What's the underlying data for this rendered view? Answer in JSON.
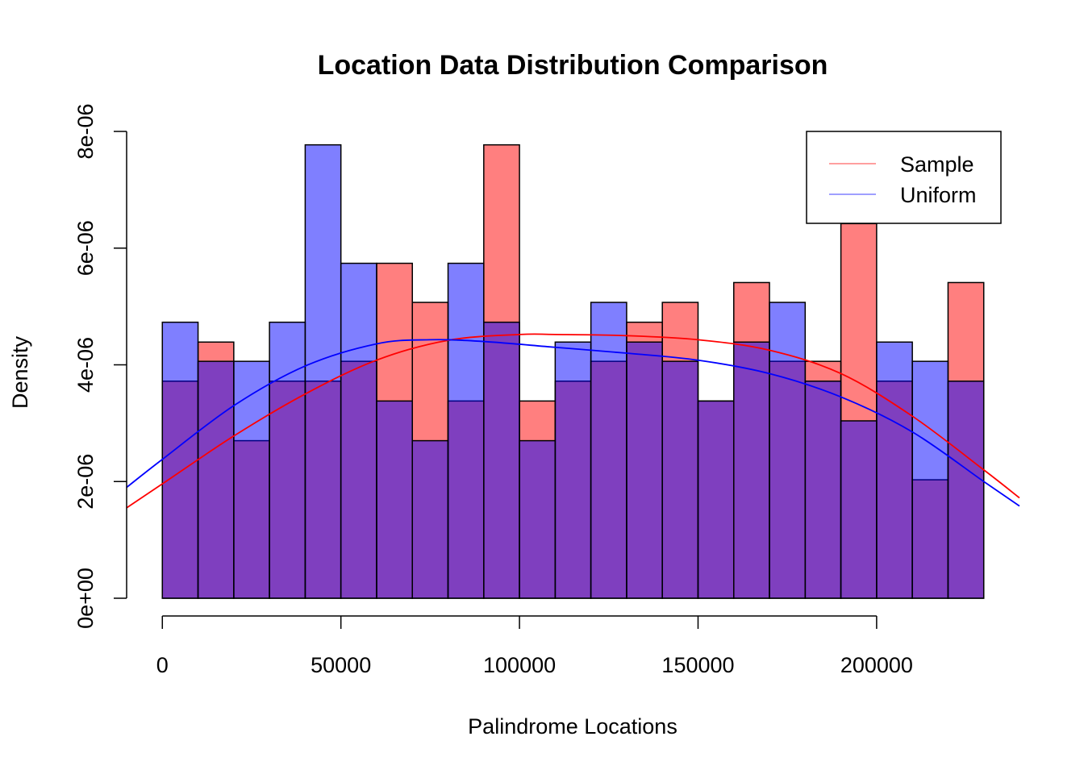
{
  "chart_data": {
    "type": "bar",
    "title": "Location Data Distribution Comparison",
    "xlabel": "Palindrome Locations",
    "ylabel": "Density",
    "xlim": [
      -10000,
      240000
    ],
    "ylim": [
      0,
      8e-06
    ],
    "x_ticks": [
      0,
      50000,
      100000,
      150000,
      200000
    ],
    "x_tick_labels": [
      "0",
      "50000",
      "100000",
      "150000",
      "200000"
    ],
    "y_ticks": [
      0,
      2e-06,
      4e-06,
      6e-06,
      8e-06
    ],
    "y_tick_labels": [
      "0e+00",
      "2e-06",
      "4e-06",
      "6e-06",
      "8e-06"
    ],
    "bin_edges": [
      0,
      10000,
      20000,
      30000,
      40000,
      50000,
      60000,
      70000,
      80000,
      90000,
      100000,
      110000,
      120000,
      130000,
      140000,
      150000,
      160000,
      170000,
      180000,
      190000,
      200000,
      210000,
      220000,
      230000
    ],
    "series": [
      {
        "name": "Sample",
        "color": "#ff0000",
        "fill": "rgba(255,0,0,0.5)",
        "values": [
          3.72e-06,
          4.39e-06,
          2.7e-06,
          3.72e-06,
          3.72e-06,
          4.06e-06,
          5.74e-06,
          5.07e-06,
          3.38e-06,
          7.77e-06,
          3.38e-06,
          3.72e-06,
          4.06e-06,
          4.73e-06,
          5.07e-06,
          3.38e-06,
          5.41e-06,
          4.06e-06,
          4.06e-06,
          6.42e-06,
          3.72e-06,
          2.03e-06,
          5.41e-06
        ],
        "density_curve": {
          "x": [
            -10000,
            0,
            20000,
            40000,
            60000,
            80000,
            100000,
            110000,
            130000,
            150000,
            170000,
            190000,
            210000,
            230000,
            240000
          ],
          "y": [
            1.55e-06,
            1.96e-06,
            2.78e-06,
            3.5e-06,
            4.08e-06,
            4.42e-06,
            4.52e-06,
            4.52e-06,
            4.5e-06,
            4.43e-06,
            4.25e-06,
            3.85e-06,
            3.12e-06,
            2.2e-06,
            1.72e-06
          ]
        }
      },
      {
        "name": "Uniform",
        "color": "#0000ff",
        "fill": "rgba(0,0,255,0.5)",
        "values": [
          4.73e-06,
          4.06e-06,
          4.06e-06,
          4.73e-06,
          7.77e-06,
          5.74e-06,
          3.38e-06,
          2.7e-06,
          5.74e-06,
          4.73e-06,
          2.7e-06,
          4.39e-06,
          5.07e-06,
          4.39e-06,
          4.06e-06,
          3.38e-06,
          4.39e-06,
          5.07e-06,
          3.72e-06,
          3.04e-06,
          4.39e-06,
          4.06e-06,
          3.72e-06
        ],
        "density_curve": {
          "x": [
            -10000,
            0,
            20000,
            40000,
            60000,
            75000,
            90000,
            110000,
            130000,
            150000,
            170000,
            190000,
            210000,
            230000,
            240000
          ],
          "y": [
            1.9e-06,
            2.38e-06,
            3.3e-06,
            3.98e-06,
            4.36e-06,
            4.43e-06,
            4.4e-06,
            4.3e-06,
            4.2e-06,
            4.08e-06,
            3.85e-06,
            3.45e-06,
            2.85e-06,
            2e-06,
            1.58e-06
          ]
        }
      }
    ],
    "overlap_color": "#7f3fbf",
    "legend": {
      "position": "top-right",
      "entries": [
        "Sample",
        "Uniform"
      ]
    }
  }
}
